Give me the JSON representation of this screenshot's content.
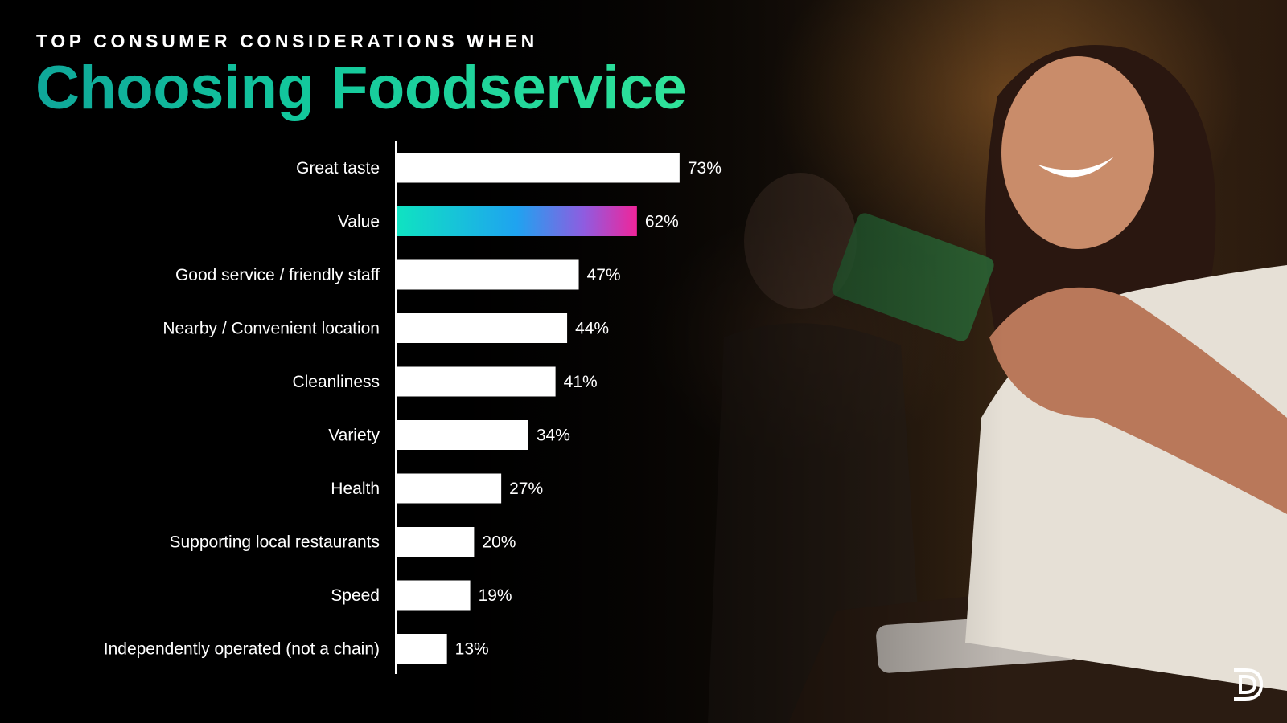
{
  "chart_data": {
    "type": "bar",
    "orientation": "horizontal",
    "subtitle": "TOP CONSUMER CONSIDERATIONS WHEN",
    "title": "Choosing Foodservice",
    "categories": [
      "Great taste",
      "Value",
      "Good service / friendly staff",
      "Nearby / Convenient location",
      "Cleanliness",
      "Variety",
      "Health",
      "Supporting local restaurants",
      "Speed",
      "Independently operated (not a chain)"
    ],
    "values": [
      73,
      62,
      47,
      44,
      41,
      34,
      27,
      20,
      19,
      13
    ],
    "value_labels": [
      "73%",
      "62%",
      "47%",
      "44%",
      "41%",
      "34%",
      "27%",
      "20%",
      "19%",
      "13%"
    ],
    "highlight_category": "Value",
    "xlim": [
      0,
      100
    ],
    "grid": false,
    "legend": "none",
    "colors": {
      "bar": "#ffffff",
      "highlight_gradient": [
        "#0fe3c1",
        "#1fa3f0",
        "#8f5ce0",
        "#f0259a"
      ],
      "title_gradient": [
        "#0fa79a",
        "#2fe39a"
      ],
      "text": "#ffffff"
    }
  },
  "logo": {
    "icon": "d-monogram-logo"
  }
}
